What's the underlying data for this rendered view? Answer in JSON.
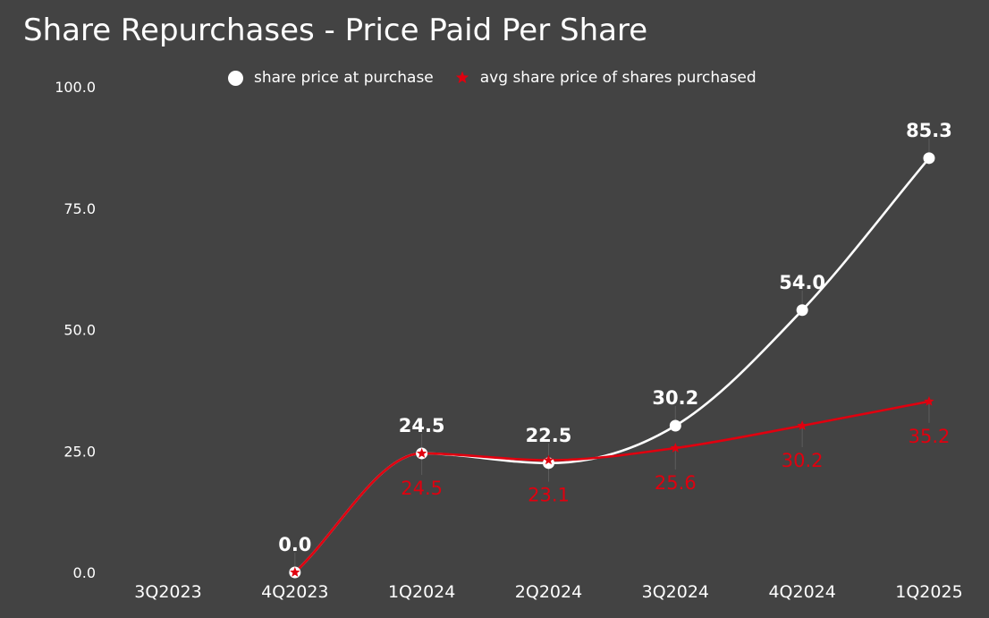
{
  "chart_data": {
    "type": "line",
    "title": "Share Repurchases - Price Paid Per Share",
    "categories": [
      "3Q2023",
      "4Q2023",
      "1Q2024",
      "2Q2024",
      "3Q2024",
      "4Q2024",
      "1Q2025"
    ],
    "ylim": [
      0,
      100
    ],
    "yticks": [
      "0.0",
      "25.0",
      "50.0",
      "75.0",
      "100.0"
    ],
    "legend_position": "top-center",
    "grid": false,
    "colors": {
      "background": "#434343",
      "share_price": "#ffffff",
      "avg_price": "#e0000f"
    },
    "series": [
      {
        "name": "share price at purchase",
        "marker": "circle",
        "values": [
          null,
          0.0,
          24.5,
          22.5,
          30.2,
          54.0,
          85.3
        ],
        "labels": [
          "",
          "0.0",
          "24.5",
          "22.5",
          "30.2",
          "54.0",
          "85.3"
        ]
      },
      {
        "name": "avg share price of shares purchased",
        "marker": "star",
        "values": [
          null,
          0.0,
          24.5,
          23.1,
          25.6,
          30.2,
          35.2
        ],
        "labels": [
          "",
          "",
          "24.5",
          "23.1",
          "25.6",
          "30.2",
          "35.2"
        ]
      }
    ]
  }
}
